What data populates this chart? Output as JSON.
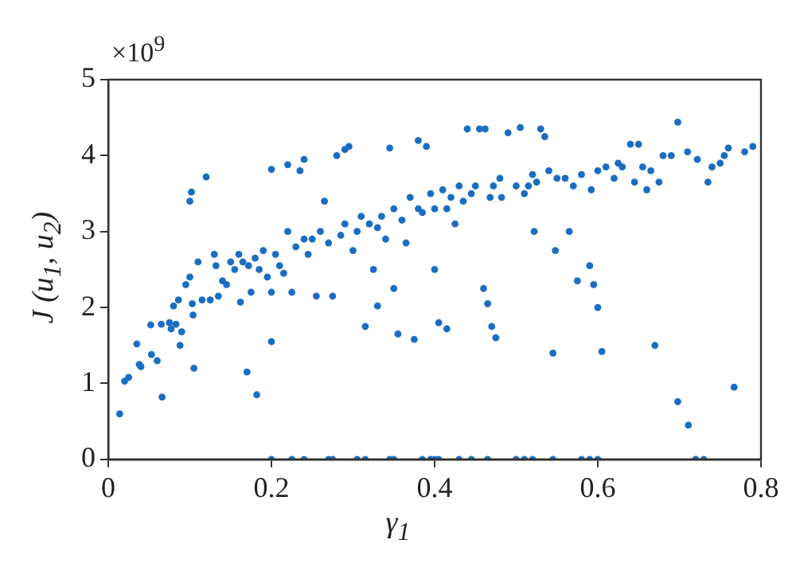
{
  "chart_data": {
    "type": "scatter",
    "xlabel": "γ$_{1}$",
    "ylabel": "J (u$_{1}$, u$_{2}$)",
    "annotations": [
      "×10$^{9}$"
    ],
    "xlim": [
      0,
      0.8
    ],
    "xticks": [
      0,
      0.2,
      0.4,
      0.6,
      0.8
    ],
    "ylim": [
      0,
      5
    ],
    "yticks": [
      0,
      1,
      2,
      3,
      4,
      5
    ],
    "grid": false,
    "legend": false,
    "marker": "circle",
    "series": [
      {
        "color": "#1a6dc2",
        "x": [
          0.014,
          0.02,
          0.025,
          0.035,
          0.038,
          0.04,
          0.052,
          0.053,
          0.06,
          0.065,
          0.066,
          0.075,
          0.077,
          0.08,
          0.083,
          0.086,
          0.088,
          0.09,
          0.095,
          0.1,
          0.1,
          0.102,
          0.103,
          0.104,
          0.105,
          0.11,
          0.115,
          0.12,
          0.125,
          0.13,
          0.132,
          0.135,
          0.14,
          0.145,
          0.15,
          0.155,
          0.16,
          0.162,
          0.165,
          0.17,
          0.172,
          0.175,
          0.18,
          0.182,
          0.185,
          0.19,
          0.195,
          0.2,
          0.2,
          0.2,
          0.205,
          0.21,
          0.215,
          0.22,
          0.22,
          0.225,
          0.23,
          0.235,
          0.24,
          0.24,
          0.245,
          0.25,
          0.255,
          0.26,
          0.265,
          0.27,
          0.275,
          0.28,
          0.285,
          0.29,
          0.29,
          0.295,
          0.3,
          0.305,
          0.31,
          0.315,
          0.32,
          0.325,
          0.33,
          0.33,
          0.335,
          0.34,
          0.345,
          0.35,
          0.35,
          0.355,
          0.36,
          0.365,
          0.37,
          0.375,
          0.38,
          0.38,
          0.385,
          0.39,
          0.395,
          0.4,
          0.4,
          0.405,
          0.41,
          0.415,
          0.415,
          0.42,
          0.425,
          0.43,
          0.435,
          0.44,
          0.445,
          0.45,
          0.455,
          0.46,
          0.462,
          0.465,
          0.468,
          0.47,
          0.472,
          0.475,
          0.48,
          0.482,
          0.49,
          0.5,
          0.505,
          0.51,
          0.515,
          0.52,
          0.522,
          0.525,
          0.53,
          0.535,
          0.54,
          0.545,
          0.548,
          0.55,
          0.56,
          0.565,
          0.57,
          0.575,
          0.58,
          0.59,
          0.592,
          0.595,
          0.6,
          0.6,
          0.605,
          0.61,
          0.62,
          0.625,
          0.63,
          0.64,
          0.645,
          0.65,
          0.655,
          0.66,
          0.665,
          0.67,
          0.675,
          0.68,
          0.69,
          0.698,
          0.71,
          0.698,
          0.722,
          0.711,
          0.735,
          0.74,
          0.75,
          0.755,
          0.76,
          0.767,
          0.78,
          0.79,
          0.2,
          0.225,
          0.24,
          0.27,
          0.275,
          0.305,
          0.315,
          0.345,
          0.35,
          0.385,
          0.395,
          0.4,
          0.405,
          0.43,
          0.445,
          0.465,
          0.5,
          0.51,
          0.52,
          0.545,
          0.58,
          0.59,
          0.6,
          0.72,
          0.73
        ],
        "values": [
          0.6,
          1.03,
          1.08,
          1.52,
          1.25,
          1.22,
          1.77,
          1.38,
          1.3,
          1.78,
          0.82,
          1.8,
          1.72,
          2.02,
          1.78,
          2.1,
          1.5,
          1.68,
          2.3,
          2.4,
          3.4,
          3.52,
          2.05,
          1.9,
          1.2,
          2.6,
          2.1,
          3.72,
          2.1,
          2.7,
          2.55,
          2.15,
          2.35,
          2.3,
          2.6,
          2.5,
          2.7,
          2.07,
          2.6,
          1.15,
          2.55,
          2.2,
          2.65,
          0.85,
          2.5,
          2.75,
          2.4,
          2.2,
          1.55,
          3.82,
          2.7,
          2.55,
          2.45,
          3.0,
          3.88,
          2.2,
          2.8,
          3.8,
          2.9,
          3.95,
          2.7,
          2.9,
          2.15,
          3.0,
          3.4,
          2.85,
          2.15,
          4.0,
          2.95,
          3.1,
          4.08,
          4.12,
          2.75,
          3.0,
          3.2,
          1.75,
          3.1,
          2.5,
          3.05,
          2.02,
          3.2,
          2.9,
          4.1,
          3.3,
          2.25,
          1.65,
          3.15,
          2.85,
          3.45,
          1.58,
          3.3,
          4.2,
          3.25,
          4.12,
          3.5,
          2.5,
          3.3,
          1.8,
          3.55,
          3.3,
          1.72,
          3.45,
          3.1,
          3.6,
          3.4,
          4.35,
          3.5,
          3.6,
          4.35,
          2.25,
          4.35,
          2.05,
          3.45,
          1.75,
          3.6,
          1.6,
          3.7,
          3.45,
          4.3,
          3.6,
          4.37,
          3.5,
          3.6,
          3.75,
          3.0,
          3.65,
          4.35,
          4.25,
          3.8,
          1.4,
          2.75,
          3.7,
          3.7,
          3.0,
          3.6,
          2.35,
          3.75,
          2.55,
          3.55,
          2.3,
          2.0,
          3.8,
          1.42,
          3.85,
          3.7,
          3.9,
          3.85,
          4.15,
          3.65,
          4.15,
          3.85,
          3.55,
          3.8,
          1.5,
          3.65,
          4.0,
          4.0,
          4.44,
          4.05,
          0.76,
          3.95,
          0.45,
          3.65,
          3.85,
          3.9,
          4.0,
          4.1,
          0.95,
          4.05,
          4.12,
          0,
          0,
          0,
          0,
          0,
          0,
          0,
          0,
          0,
          0,
          0,
          0,
          0,
          0,
          0,
          0,
          0,
          0,
          0,
          0,
          0,
          0,
          0,
          0,
          0
        ]
      }
    ]
  }
}
